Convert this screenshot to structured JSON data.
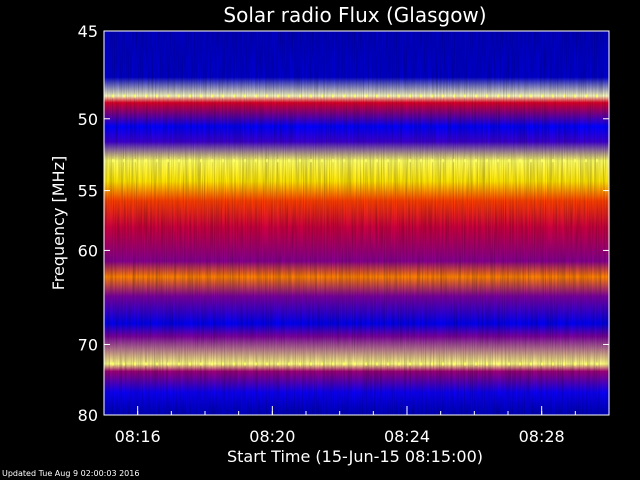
{
  "chart_data": {
    "type": "heatmap",
    "title": "Solar radio Flux (Glasgow)",
    "xlabel": "Start Time (15-Jun-15 08:15:00)",
    "ylabel": "Frequency [MHz]",
    "x_ticks": [
      "08:16",
      "08:20",
      "08:24",
      "08:28"
    ],
    "x_tick_minutes": [
      16,
      20,
      24,
      28
    ],
    "x_range_minutes": [
      15.0,
      30.0
    ],
    "y_ticks": [
      45,
      50,
      55,
      60,
      70,
      80
    ],
    "y_range": [
      45,
      80
    ],
    "y_scale": "reciprocal",
    "colormap": [
      "#000080",
      "#0000ff",
      "#7a00a0",
      "#ff0000",
      "#ffff00",
      "#ffffff"
    ],
    "intensity_profile": [
      {
        "freq": 45.0,
        "level": 0.1
      },
      {
        "freq": 47.5,
        "level": 0.12
      },
      {
        "freq": 48.6,
        "level": 0.95
      },
      {
        "freq": 49.0,
        "level": 0.55
      },
      {
        "freq": 50.5,
        "level": 0.2
      },
      {
        "freq": 51.5,
        "level": 0.3
      },
      {
        "freq": 52.8,
        "level": 0.88
      },
      {
        "freq": 54.3,
        "level": 0.78
      },
      {
        "freq": 55.8,
        "level": 0.65
      },
      {
        "freq": 58.0,
        "level": 0.52
      },
      {
        "freq": 61.0,
        "level": 0.42
      },
      {
        "freq": 62.5,
        "level": 0.7
      },
      {
        "freq": 64.5,
        "level": 0.4
      },
      {
        "freq": 67.5,
        "level": 0.18
      },
      {
        "freq": 69.0,
        "level": 0.4
      },
      {
        "freq": 72.5,
        "level": 0.9
      },
      {
        "freq": 73.5,
        "level": 0.45
      },
      {
        "freq": 76.5,
        "level": 0.22
      },
      {
        "freq": 79.5,
        "level": 0.1
      }
    ]
  },
  "footer": "Updated Tue Aug  9 02:00:03 2016"
}
